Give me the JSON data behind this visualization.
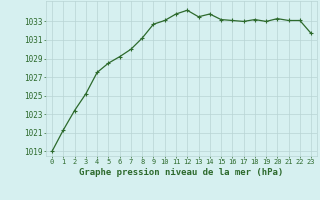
{
  "x": [
    0,
    1,
    2,
    3,
    4,
    5,
    6,
    7,
    8,
    9,
    10,
    11,
    12,
    13,
    14,
    15,
    16,
    17,
    18,
    19,
    20,
    21,
    22,
    23
  ],
  "y": [
    1019.0,
    1021.3,
    1023.4,
    1025.2,
    1027.5,
    1028.5,
    1029.2,
    1030.0,
    1031.2,
    1032.7,
    1033.1,
    1033.8,
    1034.2,
    1033.5,
    1033.8,
    1033.2,
    1033.1,
    1033.0,
    1033.2,
    1033.0,
    1033.3,
    1033.1,
    1033.1,
    1031.7
  ],
  "line_color": "#2d6a2d",
  "marker": "+",
  "bg_color": "#d6f0f0",
  "grid_color": "#b8d4d4",
  "xlabel": "Graphe pression niveau de la mer (hPa)",
  "xlabel_color": "#2d6a2d",
  "ytick_values": [
    1019,
    1021,
    1023,
    1025,
    1027,
    1029,
    1031,
    1033
  ],
  "ylim": [
    1018.5,
    1035.2
  ],
  "xlim": [
    -0.5,
    23.5
  ],
  "xtick_values": [
    0,
    1,
    2,
    3,
    4,
    5,
    6,
    7,
    8,
    9,
    10,
    11,
    12,
    13,
    14,
    15,
    16,
    17,
    18,
    19,
    20,
    21,
    22,
    23
  ],
  "tick_color": "#2d6a2d",
  "linewidth": 0.9,
  "markersize": 3.5,
  "markeredgewidth": 0.8
}
